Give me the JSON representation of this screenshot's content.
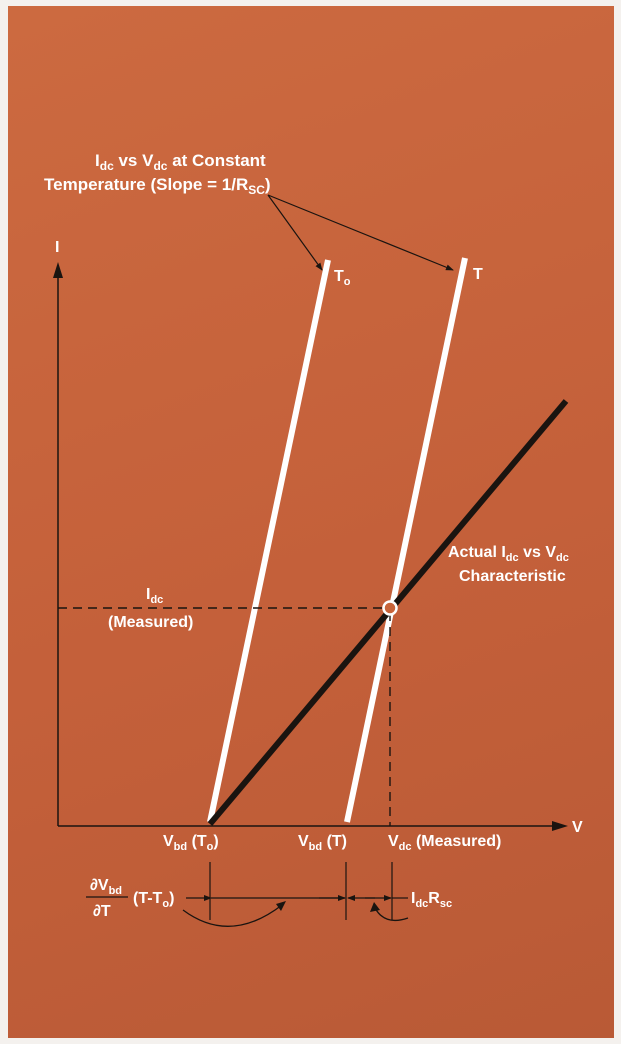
{
  "colors": {
    "background": "#c8643a",
    "axis": "#1a1410",
    "white_lines": "#ffffff",
    "characteristic_line": "#1a1410"
  },
  "labels": {
    "slope_note_line1": {
      "main1": "I",
      "sub1": "dc",
      "main2": " vs V",
      "sub2": "dc",
      "main3": " at Constant"
    },
    "slope_note_line2": {
      "main1": "Temperature (Slope = 1/R",
      "sub1": "SC",
      "main2": ")"
    },
    "curve_To": {
      "main": "T",
      "sub": "o"
    },
    "curve_T": {
      "main": "T"
    },
    "axis_I": "I",
    "axis_V": "V",
    "actual_line1": {
      "main1": "Actual I",
      "sub1": "dc",
      "main2": " vs V",
      "sub2": "dc"
    },
    "actual_line2": "Characteristic",
    "idc_measured_line1": {
      "main": "I",
      "sub": "dc"
    },
    "idc_measured_line2": "(Measured)",
    "vbd_To": {
      "main1": "V",
      "sub1": "bd",
      "main2": " (T",
      "sub2": "o",
      "main3": ")"
    },
    "vbd_T": {
      "main1": "V",
      "sub1": "bd",
      "main2": " (T)"
    },
    "vdc_measured": {
      "main1": "V",
      "sub1": "dc",
      "main2": " (Measured)"
    },
    "dvbd_numerator": {
      "main1": "∂V",
      "sub1": "bd"
    },
    "dvbd_denominator": "∂T",
    "dvbd_factor": {
      "main1": "(T-T",
      "sub1": "o",
      "main2": ")"
    },
    "idc_rsc": {
      "main1": "I",
      "sub1": "dc",
      "main2": "R",
      "sub2": "sc"
    }
  }
}
